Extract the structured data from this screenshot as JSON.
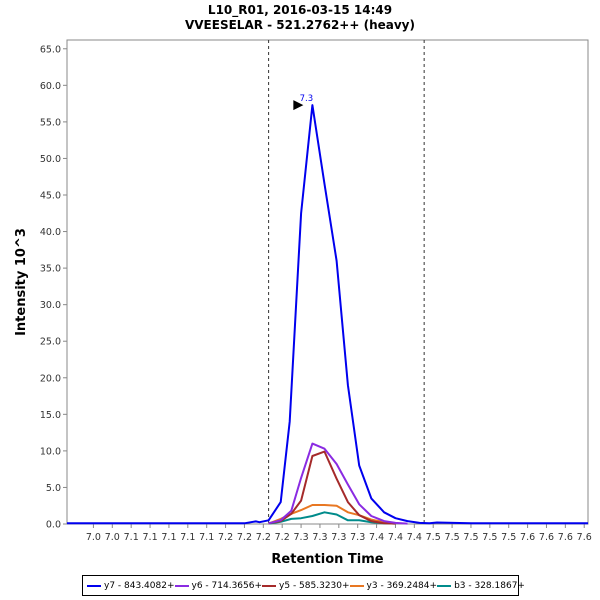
{
  "chart_data": {
    "type": "line",
    "title": "L10_R01, 2016-03-15 14:49",
    "subtitle": "VVEESELAR - 521.2762++ (heavy)",
    "xlabel": "Retention Time",
    "ylabel": "Intensity 10^3",
    "xlim": [
      6.965,
      7.655
    ],
    "ylim": [
      0,
      66.2
    ],
    "x_ticks": [
      7.0,
      7.025,
      7.05,
      7.075,
      7.1,
      7.125,
      7.15,
      7.175,
      7.2,
      7.225,
      7.25,
      7.275,
      7.3,
      7.325,
      7.35,
      7.375,
      7.4,
      7.425,
      7.45,
      7.475,
      7.5,
      7.525,
      7.55,
      7.575,
      7.6,
      7.625,
      7.65
    ],
    "x_tick_labels": [
      "7.0",
      "7.0",
      "7.1",
      "7.1",
      "7.1",
      "7.1",
      "7.1",
      "7.2",
      "7.2",
      "7.2",
      "7.2",
      "7.3",
      "7.3",
      "7.3",
      "7.3",
      "7.4",
      "7.4",
      "7.4",
      "7.5",
      "7.5",
      "7.5",
      "7.5",
      "7.5",
      "7.6",
      "7.6",
      "7.6",
      "7.6"
    ],
    "y_ticks": [
      0,
      5,
      10,
      15,
      20,
      25,
      30,
      35,
      40,
      45,
      50,
      55,
      60,
      65
    ],
    "y_tick_labels": [
      "0.0",
      "5.0",
      "10.0",
      "15.0",
      "20.0",
      "25.0",
      "30.0",
      "35.0",
      "40.0",
      "45.0",
      "50.0",
      "55.0",
      "60.0",
      "65.0"
    ],
    "boundaries": [
      7.232,
      7.438
    ],
    "peak": {
      "x": 7.282,
      "y": 57.3,
      "label": "7.3"
    },
    "grid": false,
    "legend_position": "bottom",
    "series": [
      {
        "name": "y7 - 843.4082+",
        "color": "#0000ee",
        "x": [
          6.965,
          7.0,
          7.05,
          7.1,
          7.15,
          7.2,
          7.215,
          7.22,
          7.232,
          7.248,
          7.26,
          7.275,
          7.29,
          7.306,
          7.322,
          7.337,
          7.352,
          7.368,
          7.385,
          7.4,
          7.416,
          7.432,
          7.445,
          7.455,
          7.5,
          7.55,
          7.6,
          7.655
        ],
        "y": [
          0.1,
          0.1,
          0.1,
          0.1,
          0.1,
          0.1,
          0.35,
          0.25,
          0.5,
          3.0,
          14.0,
          42.5,
          57.3,
          46.5,
          36.0,
          19.0,
          8.0,
          3.5,
          1.6,
          0.8,
          0.4,
          0.15,
          0.1,
          0.2,
          0.1,
          0.1,
          0.1,
          0.1
        ]
      },
      {
        "name": "y6 - 714.3656+",
        "color": "#8a2be2",
        "x": [
          7.232,
          7.248,
          7.262,
          7.275,
          7.29,
          7.306,
          7.322,
          7.337,
          7.352,
          7.368,
          7.385,
          7.4,
          7.416
        ],
        "y": [
          0.1,
          0.5,
          1.8,
          6.3,
          11.0,
          10.3,
          8.2,
          5.4,
          2.7,
          1.1,
          0.4,
          0.15,
          0.05
        ]
      },
      {
        "name": "y5 - 585.3230+",
        "color": "#a52a2a",
        "x": [
          7.232,
          7.248,
          7.262,
          7.275,
          7.29,
          7.306,
          7.322,
          7.337,
          7.352,
          7.368,
          7.385,
          7.4
        ],
        "y": [
          0.1,
          0.4,
          1.4,
          3.2,
          9.3,
          9.9,
          6.2,
          3.0,
          1.2,
          0.4,
          0.1,
          0.05
        ]
      },
      {
        "name": "y3 - 369.2484+",
        "color": "#e87722",
        "x": [
          7.232,
          7.248,
          7.262,
          7.275,
          7.29,
          7.306,
          7.322,
          7.337,
          7.352,
          7.368,
          7.385,
          7.4
        ],
        "y": [
          0.05,
          0.7,
          1.4,
          1.9,
          2.6,
          2.6,
          2.5,
          1.6,
          1.2,
          0.6,
          0.25,
          0.1
        ]
      },
      {
        "name": "b3 - 328.1867+",
        "color": "#008b8b",
        "x": [
          7.232,
          7.248,
          7.262,
          7.275,
          7.29,
          7.306,
          7.322,
          7.337,
          7.352,
          7.368,
          7.385,
          7.4
        ],
        "y": [
          0.05,
          0.3,
          0.7,
          0.8,
          1.1,
          1.6,
          1.3,
          0.5,
          0.5,
          0.25,
          0.1,
          0.05
        ]
      }
    ]
  }
}
